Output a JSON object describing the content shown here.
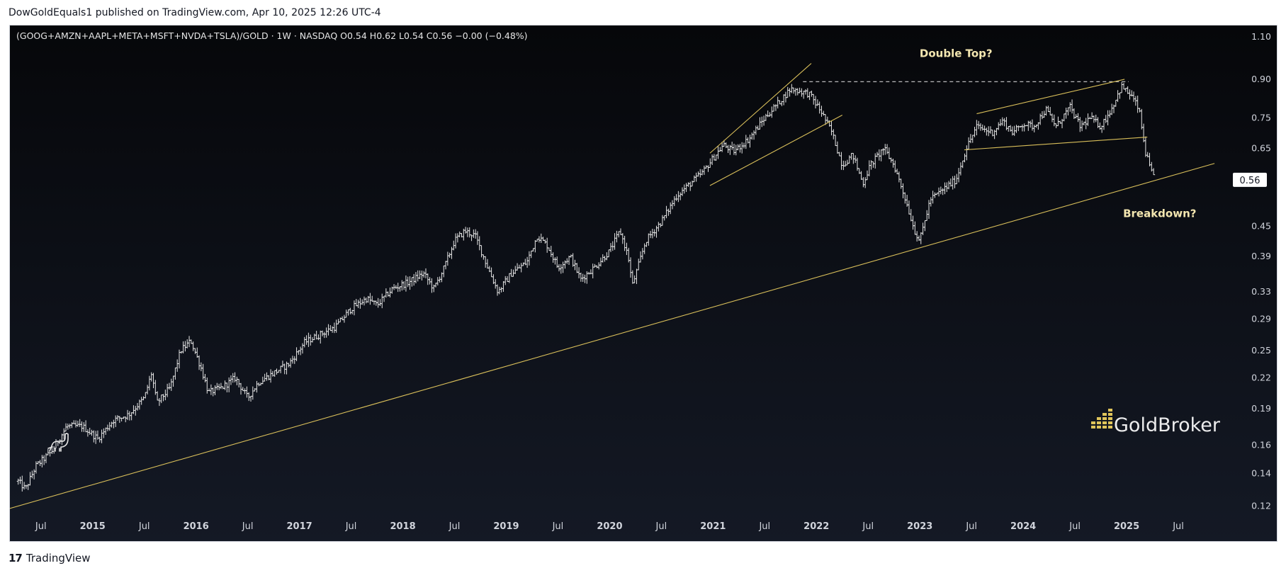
{
  "publisher": "DowGoldEquals1 published on TradingView.com, Apr 10, 2025 12:26 UTC-4",
  "footer_brand": "TradingView",
  "watermark": "GoldBroker",
  "colors": {
    "background_top": "#06070a",
    "background_bottom": "#141925",
    "bars": "#e6e6e6",
    "trendlines": "#d9bf5a",
    "annotation_text": "#f3e6b0",
    "axis_text": "#d1d4dc"
  },
  "chart_data": {
    "type": "ohlc",
    "symbol_line": "(GOOG+AMZN+AAPL+META+MSFT+NVDA+TSLA)/GOLD · 1W · NASDAQ  O0.54  H0.62  L0.54  C0.56  −0.00 (−0.48%)",
    "scale": "log",
    "ylim": [
      0.107,
      1.16
    ],
    "xlim": [
      2014.2,
      2026.0
    ],
    "y_ticks": [
      "1.10",
      "0.90",
      "0.75",
      "0.65",
      "0.56",
      "0.45",
      "0.39",
      "0.33",
      "0.29",
      "0.25",
      "0.22",
      "0.19",
      "0.16",
      "0.14",
      "0.12"
    ],
    "y_tick_values": [
      1.1,
      0.9,
      0.75,
      0.65,
      0.56,
      0.45,
      0.39,
      0.33,
      0.29,
      0.25,
      0.22,
      0.19,
      0.16,
      0.14,
      0.12
    ],
    "last_price_label": "0.56",
    "last_price": 0.56,
    "x_ticks": [
      "Jul",
      "2015",
      "Jul",
      "2016",
      "Jul",
      "2017",
      "Jul",
      "2018",
      "Jul",
      "2019",
      "Jul",
      "2020",
      "Jul",
      "2021",
      "Jul",
      "2022",
      "Jul",
      "2023",
      "Jul",
      "2024",
      "Jul",
      "2025",
      "Jul"
    ],
    "x_tick_values": [
      2014.5,
      2015.0,
      2015.5,
      2016.0,
      2016.5,
      2017.0,
      2017.5,
      2018.0,
      2018.5,
      2019.0,
      2019.5,
      2020.0,
      2020.5,
      2021.0,
      2021.5,
      2022.0,
      2022.5,
      2023.0,
      2023.5,
      2024.0,
      2024.5,
      2025.0,
      2025.5
    ],
    "x_tick_bold": [
      false,
      true,
      false,
      true,
      false,
      true,
      false,
      true,
      false,
      true,
      false,
      true,
      false,
      true,
      false,
      true,
      false,
      true,
      false,
      true,
      false,
      true,
      false
    ],
    "price_anchors": [
      [
        2014.28,
        0.135
      ],
      [
        2014.35,
        0.13
      ],
      [
        2014.45,
        0.145
      ],
      [
        2014.6,
        0.155
      ],
      [
        2014.75,
        0.175
      ],
      [
        2014.9,
        0.175
      ],
      [
        2015.05,
        0.165
      ],
      [
        2015.2,
        0.18
      ],
      [
        2015.35,
        0.185
      ],
      [
        2015.5,
        0.2
      ],
      [
        2015.57,
        0.225
      ],
      [
        2015.62,
        0.195
      ],
      [
        2015.75,
        0.21
      ],
      [
        2015.85,
        0.25
      ],
      [
        2015.95,
        0.262
      ],
      [
        2016.05,
        0.23
      ],
      [
        2016.12,
        0.205
      ],
      [
        2016.25,
        0.21
      ],
      [
        2016.38,
        0.22
      ],
      [
        2016.5,
        0.2
      ],
      [
        2016.6,
        0.215
      ],
      [
        2016.75,
        0.225
      ],
      [
        2016.9,
        0.235
      ],
      [
        2017.05,
        0.26
      ],
      [
        2017.2,
        0.27
      ],
      [
        2017.35,
        0.28
      ],
      [
        2017.5,
        0.305
      ],
      [
        2017.65,
        0.32
      ],
      [
        2017.75,
        0.31
      ],
      [
        2017.9,
        0.335
      ],
      [
        2018.05,
        0.345
      ],
      [
        2018.2,
        0.36
      ],
      [
        2018.3,
        0.335
      ],
      [
        2018.4,
        0.37
      ],
      [
        2018.5,
        0.42
      ],
      [
        2018.6,
        0.44
      ],
      [
        2018.7,
        0.43
      ],
      [
        2018.8,
        0.38
      ],
      [
        2018.92,
        0.33
      ],
      [
        2019.05,
        0.36
      ],
      [
        2019.2,
        0.38
      ],
      [
        2019.3,
        0.43
      ],
      [
        2019.4,
        0.41
      ],
      [
        2019.5,
        0.37
      ],
      [
        2019.62,
        0.39
      ],
      [
        2019.72,
        0.35
      ],
      [
        2019.85,
        0.37
      ],
      [
        2020.0,
        0.4
      ],
      [
        2020.1,
        0.44
      ],
      [
        2020.18,
        0.39
      ],
      [
        2020.22,
        0.34
      ],
      [
        2020.35,
        0.42
      ],
      [
        2020.5,
        0.46
      ],
      [
        2020.65,
        0.52
      ],
      [
        2020.78,
        0.55
      ],
      [
        2020.9,
        0.58
      ],
      [
        2021.0,
        0.62
      ],
      [
        2021.1,
        0.66
      ],
      [
        2021.2,
        0.64
      ],
      [
        2021.35,
        0.68
      ],
      [
        2021.5,
        0.75
      ],
      [
        2021.62,
        0.8
      ],
      [
        2021.75,
        0.86
      ],
      [
        2021.85,
        0.85
      ],
      [
        2021.93,
        0.84
      ],
      [
        2022.05,
        0.77
      ],
      [
        2022.15,
        0.7
      ],
      [
        2022.25,
        0.6
      ],
      [
        2022.35,
        0.63
      ],
      [
        2022.45,
        0.55
      ],
      [
        2022.52,
        0.6
      ],
      [
        2022.65,
        0.65
      ],
      [
        2022.75,
        0.6
      ],
      [
        2022.85,
        0.52
      ],
      [
        2022.95,
        0.44
      ],
      [
        2023.0,
        0.42
      ],
      [
        2023.1,
        0.51
      ],
      [
        2023.2,
        0.53
      ],
      [
        2023.35,
        0.56
      ],
      [
        2023.45,
        0.65
      ],
      [
        2023.55,
        0.72
      ],
      [
        2023.7,
        0.7
      ],
      [
        2023.8,
        0.74
      ],
      [
        2023.9,
        0.7
      ],
      [
        2024.0,
        0.73
      ],
      [
        2024.1,
        0.72
      ],
      [
        2024.22,
        0.78
      ],
      [
        2024.32,
        0.72
      ],
      [
        2024.45,
        0.79
      ],
      [
        2024.55,
        0.72
      ],
      [
        2024.65,
        0.75
      ],
      [
        2024.75,
        0.72
      ],
      [
        2024.85,
        0.78
      ],
      [
        2024.95,
        0.87
      ],
      [
        2025.05,
        0.83
      ],
      [
        2025.12,
        0.78
      ],
      [
        2025.18,
        0.64
      ],
      [
        2025.24,
        0.58
      ],
      [
        2025.27,
        0.56
      ]
    ],
    "trendlines": [
      {
        "name": "long-term-support",
        "from": [
          2014.0,
          0.1155
        ],
        "to": [
          2025.85,
          0.605
        ],
        "style": "solid"
      },
      {
        "name": "wedge-upper-2021",
        "from": [
          2020.97,
          0.635
        ],
        "to": [
          2021.95,
          0.97
        ],
        "style": "solid"
      },
      {
        "name": "wedge-lower-2021",
        "from": [
          2020.97,
          0.545
        ],
        "to": [
          2022.25,
          0.76
        ],
        "style": "solid"
      },
      {
        "name": "double-top-line",
        "from": [
          2021.87,
          0.89
        ],
        "to": [
          2025.02,
          0.89
        ],
        "style": "dashed"
      },
      {
        "name": "range-upper-2023",
        "from": [
          2023.55,
          0.765
        ],
        "to": [
          2024.98,
          0.9
        ],
        "style": "solid"
      },
      {
        "name": "range-lower-2023",
        "from": [
          2023.43,
          0.645
        ],
        "to": [
          2025.2,
          0.685
        ],
        "style": "solid"
      }
    ],
    "annotations": [
      {
        "text": "Double Top?",
        "x": 2023.35,
        "y": 1.0
      },
      {
        "text": "Breakdown?",
        "x": 2025.32,
        "y": 0.47
      }
    ]
  }
}
